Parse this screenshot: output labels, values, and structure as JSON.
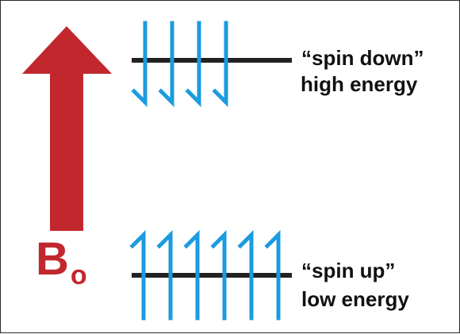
{
  "colors": {
    "field_arrow": "#c1272d",
    "spin_arrows": "#1b9be0",
    "energy_levels": "#222222",
    "text": "#111111"
  },
  "field": {
    "symbol": "B",
    "subscript": "o"
  },
  "levels": {
    "high": {
      "line1": "“spin down”",
      "line2": "high energy",
      "arrow_count": 4,
      "arrow_direction": "down"
    },
    "low": {
      "line1": "“spin up”",
      "line2": "low energy",
      "arrow_count": 6,
      "arrow_direction": "up"
    }
  }
}
